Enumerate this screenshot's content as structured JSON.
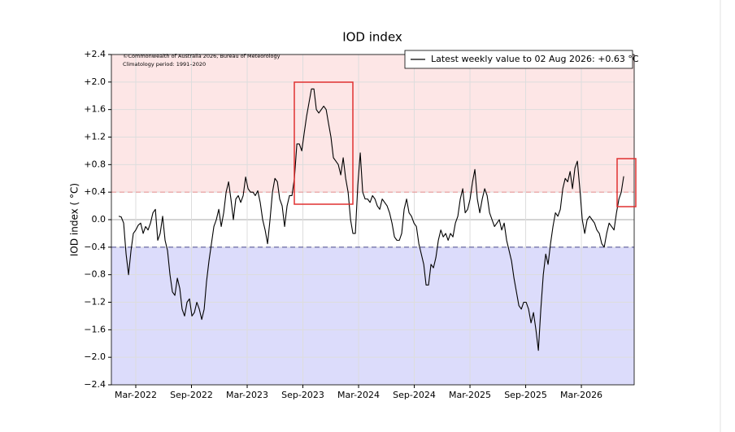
{
  "chart_data": {
    "type": "line",
    "title": "IOD index",
    "y_label": "IOD index ( °C)",
    "notes": [
      "©Commonwealth of Australia 2026, Bureau of Meteorology",
      "Climatology period: 1991–2020"
    ],
    "positive_threshold": 0.4,
    "negative_threshold": -0.4,
    "positive_color": "#fde6e6",
    "negative_color": "#dcdcfb",
    "positive_line_color": "#e89a9a",
    "negative_line_color": "#5a5a9a",
    "grid": true,
    "legend": "upper right",
    "xlim": [
      2021.948,
      2026.641
    ],
    "ylim": [
      -2.4,
      2.4
    ],
    "xticks": [
      {
        "value": 2022.167,
        "label": "Mar-2022"
      },
      {
        "value": 2022.667,
        "label": "Sep-2022"
      },
      {
        "value": 2023.167,
        "label": "Mar-2023"
      },
      {
        "value": 2023.667,
        "label": "Sep-2023"
      },
      {
        "value": 2024.167,
        "label": "Mar-2024"
      },
      {
        "value": 2024.667,
        "label": "Sep-2024"
      },
      {
        "value": 2025.167,
        "label": "Mar-2025"
      },
      {
        "value": 2025.667,
        "label": "Sep-2025"
      },
      {
        "value": 2026.167,
        "label": "Mar-2026"
      }
    ],
    "yticks": [
      {
        "value": 2.4,
        "label": "+2.4"
      },
      {
        "value": 2.0,
        "label": "+2.0"
      },
      {
        "value": 1.6,
        "label": "+1.6"
      },
      {
        "value": 1.2,
        "label": "+1.2"
      },
      {
        "value": 0.8,
        "label": "+0.8"
      },
      {
        "value": 0.4,
        "label": "+0.4"
      },
      {
        "value": 0,
        "label": "0.0"
      },
      {
        "value": -0.4,
        "label": "−0.4"
      },
      {
        "value": -0.8,
        "label": "−0.8"
      },
      {
        "value": -1.2,
        "label": "−1.2"
      },
      {
        "value": -1.6,
        "label": "−1.6"
      },
      {
        "value": -2.0,
        "label": "−2.0"
      },
      {
        "value": -2.4,
        "label": "−2.4"
      }
    ],
    "x": [
      2022.014,
      2022.036,
      2022.058,
      2022.08,
      2022.102,
      2022.124,
      2022.145,
      2022.167,
      2022.189,
      2022.211,
      2022.233,
      2022.255,
      2022.277,
      2022.299,
      2022.321,
      2022.343,
      2022.364,
      2022.386,
      2022.408,
      2022.43,
      2022.452,
      2022.474,
      2022.496,
      2022.518,
      2022.54,
      2022.562,
      2022.583,
      2022.605,
      2022.627,
      2022.649,
      2022.671,
      2022.693,
      2022.715,
      2022.737,
      2022.759,
      2022.781,
      2022.802,
      2022.824,
      2022.846,
      2022.868,
      2022.89,
      2022.912,
      2022.934,
      2022.956,
      2022.978,
      2023.0,
      2023.021,
      2023.043,
      2023.065,
      2023.087,
      2023.109,
      2023.131,
      2023.153,
      2023.175,
      2023.197,
      2023.219,
      2023.24,
      2023.262,
      2023.284,
      2023.306,
      2023.328,
      2023.35,
      2023.372,
      2023.394,
      2023.416,
      2023.438,
      2023.459,
      2023.481,
      2023.503,
      2023.525,
      2023.547,
      2023.569,
      2023.591,
      2023.613,
      2023.635,
      2023.657,
      2023.678,
      2023.7,
      2023.722,
      2023.744,
      2023.766,
      2023.788,
      2023.81,
      2023.832,
      2023.854,
      2023.876,
      2023.897,
      2023.919,
      2023.941,
      2023.963,
      2023.985,
      2024.007,
      2024.029,
      2024.051,
      2024.073,
      2024.095,
      2024.116,
      2024.138,
      2024.16,
      2024.182,
      2024.204,
      2024.226,
      2024.248,
      2024.27,
      2024.292,
      2024.314,
      2024.335,
      2024.357,
      2024.379,
      2024.401,
      2024.423,
      2024.445,
      2024.467,
      2024.489,
      2024.511,
      2024.533,
      2024.554,
      2024.576,
      2024.598,
      2024.62,
      2024.642,
      2024.664,
      2024.686,
      2024.708,
      2024.73,
      2024.752,
      2024.773,
      2024.795,
      2024.817,
      2024.839,
      2024.861,
      2024.883,
      2024.905,
      2024.927,
      2024.949,
      2024.971,
      2024.992,
      2025.014,
      2025.036,
      2025.058,
      2025.08,
      2025.102,
      2025.124,
      2025.146,
      2025.168,
      2025.19,
      2025.211,
      2025.233,
      2025.255,
      2025.277,
      2025.299,
      2025.321,
      2025.343,
      2025.365,
      2025.387,
      2025.409,
      2025.43,
      2025.452,
      2025.474,
      2025.496,
      2025.518,
      2025.54,
      2025.562,
      2025.584,
      2025.606,
      2025.628,
      2025.649,
      2025.671,
      2025.693,
      2025.715,
      2025.737,
      2025.759,
      2025.781,
      2025.803,
      2025.825,
      2025.847,
      2025.868,
      2025.89,
      2025.912,
      2025.934,
      2025.956,
      2025.978,
      2026.0,
      2026.022,
      2026.044,
      2026.066,
      2026.087,
      2026.109,
      2026.131,
      2026.153,
      2026.175,
      2026.197,
      2026.219,
      2026.241,
      2026.263,
      2026.285,
      2026.306,
      2026.328,
      2026.35,
      2026.372,
      2026.394,
      2026.416,
      2026.438,
      2026.46,
      2026.482,
      2026.504,
      2026.525,
      2026.547
    ],
    "series": [
      {
        "name": "Latest weekly value to 02 Aug 2026: +0.63 °C",
        "color": "#000000",
        "values": [
          0.05,
          0.04,
          -0.05,
          -0.5,
          -0.8,
          -0.45,
          -0.2,
          -0.15,
          -0.08,
          -0.05,
          -0.2,
          -0.1,
          -0.15,
          -0.05,
          0.1,
          0.15,
          -0.3,
          -0.2,
          0.05,
          -0.3,
          -0.45,
          -0.8,
          -1.05,
          -1.1,
          -0.85,
          -1.0,
          -1.3,
          -1.4,
          -1.2,
          -1.15,
          -1.4,
          -1.35,
          -1.2,
          -1.3,
          -1.45,
          -1.3,
          -0.9,
          -0.6,
          -0.35,
          -0.1,
          0.0,
          0.15,
          -0.1,
          0.1,
          0.4,
          0.55,
          0.3,
          0.0,
          0.3,
          0.35,
          0.25,
          0.35,
          0.62,
          0.45,
          0.4,
          0.4,
          0.35,
          0.42,
          0.25,
          0.0,
          -0.15,
          -0.35,
          0.0,
          0.4,
          0.6,
          0.55,
          0.3,
          0.2,
          -0.1,
          0.2,
          0.35,
          0.35,
          0.6,
          1.1,
          1.1,
          1.0,
          1.25,
          1.5,
          1.7,
          1.9,
          1.9,
          1.6,
          1.55,
          1.6,
          1.65,
          1.6,
          1.4,
          1.2,
          0.9,
          0.85,
          0.8,
          0.65,
          0.9,
          0.6,
          0.4,
          0.0,
          -0.2,
          -0.2,
          0.5,
          0.97,
          0.4,
          0.3,
          0.3,
          0.25,
          0.35,
          0.3,
          0.2,
          0.15,
          0.3,
          0.25,
          0.2,
          0.1,
          -0.05,
          -0.25,
          -0.3,
          -0.3,
          -0.2,
          0.15,
          0.3,
          0.1,
          0.05,
          -0.05,
          -0.1,
          -0.35,
          -0.5,
          -0.65,
          -0.95,
          -0.95,
          -0.65,
          -0.7,
          -0.55,
          -0.3,
          -0.15,
          -0.25,
          -0.2,
          -0.3,
          -0.2,
          -0.25,
          -0.05,
          0.05,
          0.3,
          0.45,
          0.1,
          0.15,
          0.3,
          0.55,
          0.73,
          0.3,
          0.1,
          0.3,
          0.45,
          0.35,
          0.1,
          0.0,
          -0.1,
          -0.05,
          0.0,
          -0.15,
          -0.05,
          -0.3,
          -0.45,
          -0.6,
          -0.85,
          -1.05,
          -1.25,
          -1.3,
          -1.2,
          -1.2,
          -1.3,
          -1.5,
          -1.35,
          -1.6,
          -1.9,
          -1.3,
          -0.8,
          -0.5,
          -0.65,
          -0.35,
          -0.1,
          0.1,
          0.05,
          0.15,
          0.45,
          0.6,
          0.55,
          0.7,
          0.45,
          0.75,
          0.85,
          0.45,
          0.0,
          -0.2,
          0.0,
          0.05,
          0.0,
          -0.05,
          -0.15,
          -0.2,
          -0.35,
          -0.4,
          -0.2,
          -0.05,
          -0.1,
          -0.15,
          0.1,
          0.3,
          0.4,
          0.63
        ]
      }
    ]
  }
}
